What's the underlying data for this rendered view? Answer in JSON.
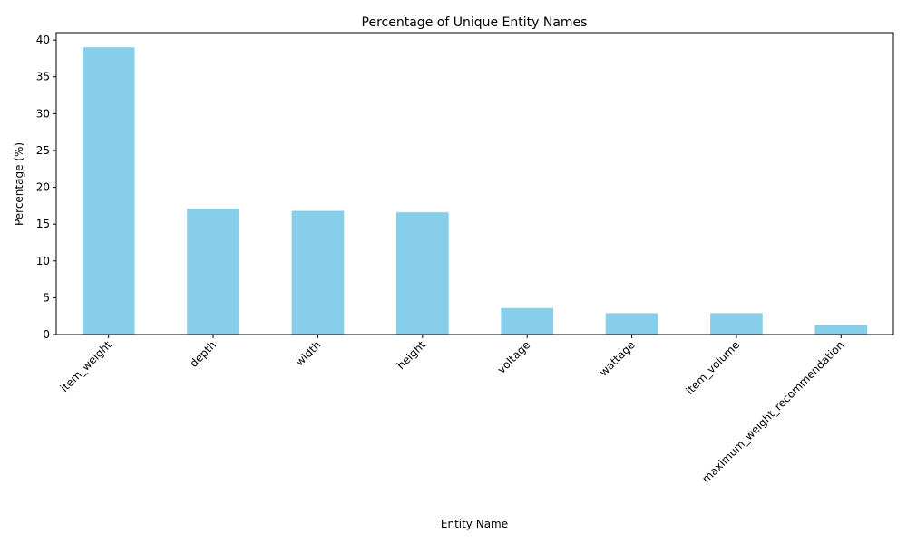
{
  "chart_data": {
    "type": "bar",
    "title": "Percentage of Unique Entity Names",
    "xlabel": "Entity Name",
    "ylabel": "Percentage (%)",
    "categories": [
      "item_weight",
      "depth",
      "width",
      "height",
      "voltage",
      "wattage",
      "item_volume",
      "maximum_weight_recommendation"
    ],
    "values": [
      39.0,
      17.1,
      16.8,
      16.6,
      3.6,
      2.9,
      2.9,
      1.3
    ],
    "ylim": [
      0,
      41
    ],
    "yticks": [
      0,
      5,
      10,
      15,
      20,
      25,
      30,
      35,
      40
    ],
    "bar_color": "#87ceeb",
    "grid": false,
    "legend": "none"
  }
}
